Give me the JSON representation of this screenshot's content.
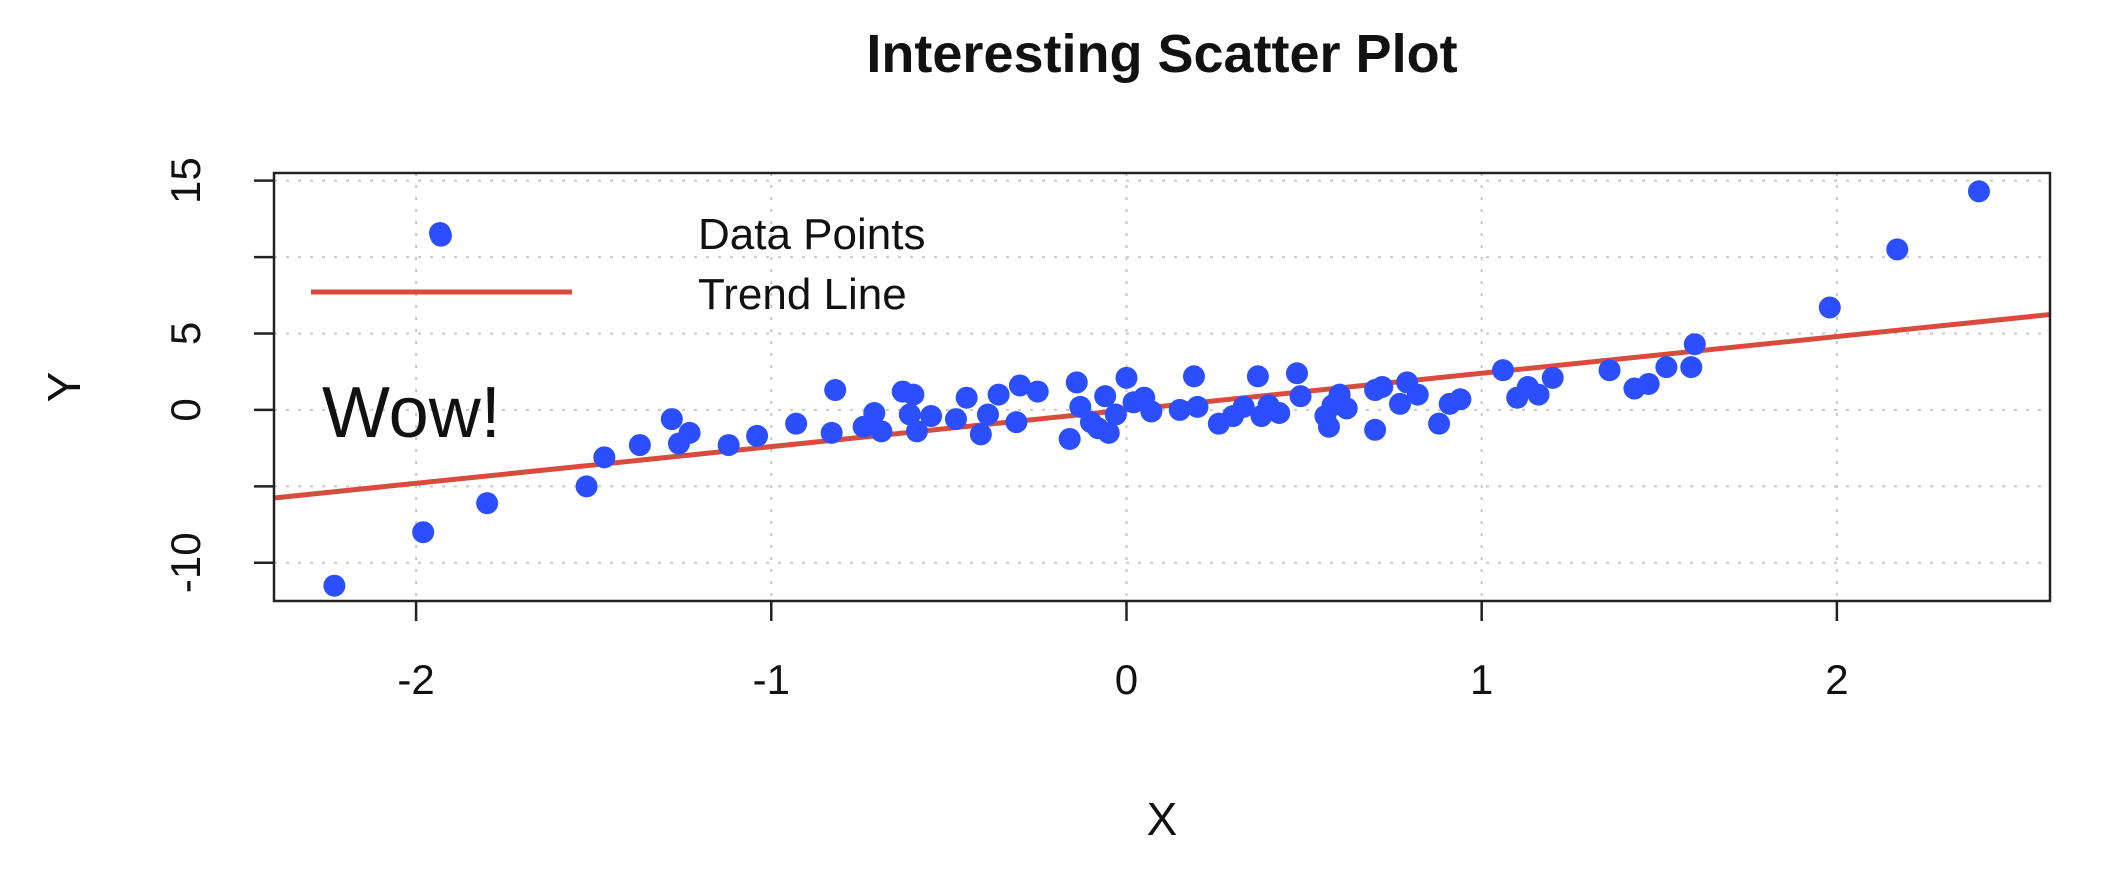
{
  "chart_data": {
    "type": "scatter",
    "title": "Interesting Scatter Plot",
    "xlabel": "X",
    "ylabel": "Y",
    "xlim": [
      -2.4,
      2.6
    ],
    "ylim": [
      -12.5,
      15.5
    ],
    "x_ticks": [
      -2,
      -1,
      0,
      1,
      2
    ],
    "x_tick_labels": [
      "-2",
      "-1",
      "0",
      "1",
      "2"
    ],
    "y_ticks": [
      -10,
      0,
      5,
      15
    ],
    "y_tick_labels": [
      "-10",
      "0",
      "5",
      "15"
    ],
    "grid": true,
    "grid_x": [
      -2,
      -1,
      0,
      1,
      2
    ],
    "grid_y": [
      -10,
      -5,
      0,
      5,
      10,
      15
    ],
    "legend": {
      "placement": "top-left",
      "entries": [
        {
          "label": "Data Points",
          "type": "point",
          "color": "#2b4fff"
        },
        {
          "label": "Trend Line",
          "type": "line",
          "color": "#d94c3d"
        }
      ]
    },
    "annotations": [
      {
        "text": "Wow!",
        "x": -1.9,
        "y": 0,
        "color": "#8ee05a"
      }
    ],
    "trend_line": {
      "slope": 2.4,
      "intercept": 0.0,
      "color": "#d94c3d"
    },
    "series": [
      {
        "name": "Data Points",
        "color": "#2b4fff",
        "points": [
          [
            -2.23,
            -11.5
          ],
          [
            -1.98,
            -8.0
          ],
          [
            -1.8,
            -6.1
          ],
          [
            -1.52,
            -5.0
          ],
          [
            -1.47,
            -3.1
          ],
          [
            -1.37,
            -2.3
          ],
          [
            -1.28,
            -0.6
          ],
          [
            -1.26,
            -2.2
          ],
          [
            -1.23,
            -1.5
          ],
          [
            -1.12,
            -2.3
          ],
          [
            -1.04,
            -1.7
          ],
          [
            -0.93,
            -0.9
          ],
          [
            -0.83,
            -1.5
          ],
          [
            -0.82,
            1.3
          ],
          [
            -0.74,
            -1.1
          ],
          [
            -0.71,
            -0.2
          ],
          [
            -0.69,
            -1.4
          ],
          [
            -0.63,
            1.2
          ],
          [
            -0.61,
            -0.3
          ],
          [
            -0.6,
            1.0
          ],
          [
            -0.59,
            -1.4
          ],
          [
            -0.55,
            -0.4
          ],
          [
            -0.48,
            -0.6
          ],
          [
            -0.45,
            0.8
          ],
          [
            -0.41,
            -1.6
          ],
          [
            -0.39,
            -0.3
          ],
          [
            -0.36,
            1.0
          ],
          [
            -0.31,
            -0.8
          ],
          [
            -0.3,
            1.6
          ],
          [
            -0.25,
            1.2
          ],
          [
            -0.16,
            -1.9
          ],
          [
            -0.14,
            1.8
          ],
          [
            -0.13,
            0.2
          ],
          [
            -0.1,
            -0.8
          ],
          [
            -0.08,
            -1.2
          ],
          [
            -0.06,
            0.9
          ],
          [
            -0.05,
            -1.5
          ],
          [
            -0.03,
            -0.3
          ],
          [
            0.0,
            2.1
          ],
          [
            0.02,
            0.5
          ],
          [
            0.05,
            0.8
          ],
          [
            0.07,
            -0.1
          ],
          [
            0.15,
            0.0
          ],
          [
            0.19,
            2.2
          ],
          [
            0.2,
            0.2
          ],
          [
            0.26,
            -0.9
          ],
          [
            0.3,
            -0.4
          ],
          [
            0.33,
            0.2
          ],
          [
            0.37,
            2.2
          ],
          [
            0.38,
            -0.4
          ],
          [
            0.4,
            0.3
          ],
          [
            0.43,
            -0.2
          ],
          [
            0.48,
            2.4
          ],
          [
            0.49,
            0.9
          ],
          [
            0.56,
            -0.4
          ],
          [
            0.57,
            -1.1
          ],
          [
            0.58,
            0.3
          ],
          [
            0.6,
            1.0
          ],
          [
            0.62,
            0.1
          ],
          [
            0.7,
            1.3
          ],
          [
            0.7,
            -1.3
          ],
          [
            0.72,
            1.5
          ],
          [
            0.77,
            0.4
          ],
          [
            0.79,
            1.8
          ],
          [
            0.82,
            1.0
          ],
          [
            0.88,
            -0.9
          ],
          [
            0.91,
            0.4
          ],
          [
            0.94,
            0.7
          ],
          [
            1.06,
            2.6
          ],
          [
            1.1,
            0.8
          ],
          [
            1.13,
            1.5
          ],
          [
            1.16,
            1.0
          ],
          [
            1.2,
            2.1
          ],
          [
            1.36,
            2.6
          ],
          [
            1.43,
            1.4
          ],
          [
            1.47,
            1.7
          ],
          [
            1.52,
            2.8
          ],
          [
            1.59,
            2.8
          ],
          [
            1.6,
            4.3
          ],
          [
            -1.93,
            11.4
          ],
          [
            1.98,
            6.7
          ],
          [
            2.17,
            10.5
          ],
          [
            2.4,
            14.3
          ]
        ]
      }
    ]
  }
}
